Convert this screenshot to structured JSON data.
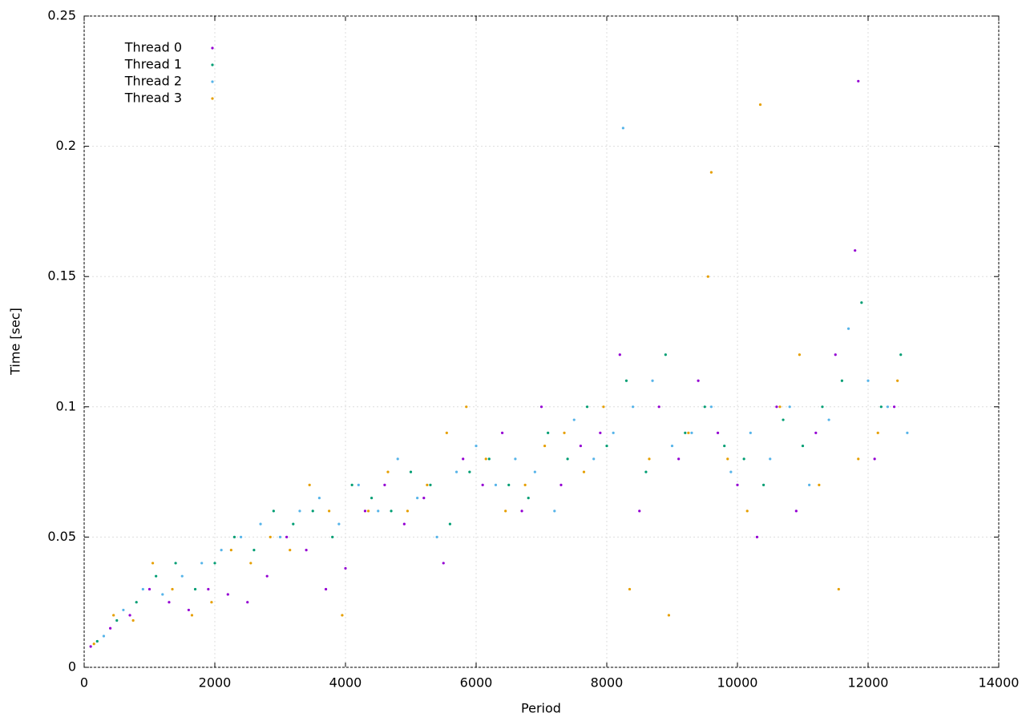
{
  "chart_data": {
    "type": "scatter",
    "xlabel": "Period",
    "ylabel": "Time [sec]",
    "xlim": [
      0,
      14000
    ],
    "ylim": [
      0,
      0.25
    ],
    "xticks": [
      0,
      2000,
      4000,
      6000,
      8000,
      10000,
      12000,
      14000
    ],
    "yticks": [
      0,
      0.05,
      0.1,
      0.15,
      0.2,
      0.25
    ],
    "grid": true,
    "legend": "upper left",
    "series": [
      {
        "name": "Thread 0",
        "color": "#9400d3",
        "x": [
          100,
          400,
          700,
          1000,
          1300,
          1600,
          1900,
          2200,
          2500,
          2800,
          3100,
          3400,
          3700,
          4000,
          4300,
          4600,
          4900,
          5200,
          5500,
          5800,
          6100,
          6400,
          6700,
          7000,
          7300,
          7600,
          7900,
          8200,
          8500,
          8800,
          9100,
          9400,
          9700,
          10000,
          10300,
          10600,
          10900,
          11200,
          11500,
          11800,
          11850,
          12100,
          12400
        ],
        "values": [
          0.008,
          0.015,
          0.02,
          0.03,
          0.025,
          0.022,
          0.03,
          0.028,
          0.025,
          0.035,
          0.05,
          0.045,
          0.03,
          0.038,
          0.06,
          0.07,
          0.055,
          0.065,
          0.04,
          0.08,
          0.07,
          0.09,
          0.06,
          0.1,
          0.07,
          0.085,
          0.09,
          0.12,
          0.06,
          0.1,
          0.08,
          0.11,
          0.09,
          0.07,
          0.05,
          0.1,
          0.06,
          0.09,
          0.12,
          0.16,
          0.225,
          0.08,
          0.1
        ]
      },
      {
        "name": "Thread 1",
        "color": "#009e73",
        "x": [
          200,
          500,
          800,
          1100,
          1400,
          1700,
          2000,
          2300,
          2600,
          2900,
          3200,
          3500,
          3800,
          4100,
          4400,
          4700,
          5000,
          5300,
          5600,
          5900,
          6200,
          6500,
          6800,
          7100,
          7400,
          7700,
          8000,
          8300,
          8600,
          8900,
          9200,
          9500,
          9800,
          10100,
          10400,
          10700,
          11000,
          11300,
          11600,
          11900,
          12200,
          12500
        ],
        "values": [
          0.01,
          0.018,
          0.025,
          0.035,
          0.04,
          0.03,
          0.04,
          0.05,
          0.045,
          0.06,
          0.055,
          0.06,
          0.05,
          0.07,
          0.065,
          0.06,
          0.075,
          0.07,
          0.055,
          0.075,
          0.08,
          0.07,
          0.065,
          0.09,
          0.08,
          0.1,
          0.085,
          0.11,
          0.075,
          0.12,
          0.09,
          0.1,
          0.085,
          0.08,
          0.07,
          0.095,
          0.085,
          0.1,
          0.11,
          0.14,
          0.1,
          0.12
        ]
      },
      {
        "name": "Thread 2",
        "color": "#56b4e9",
        "x": [
          300,
          600,
          900,
          1200,
          1500,
          1800,
          2100,
          2400,
          2700,
          3000,
          3300,
          3600,
          3900,
          4200,
          4500,
          4800,
          5100,
          5400,
          5700,
          6000,
          6300,
          6600,
          6900,
          7200,
          7500,
          7800,
          8100,
          8250,
          8400,
          8700,
          9000,
          9300,
          9600,
          9900,
          10200,
          10500,
          10800,
          11100,
          11400,
          11700,
          12000,
          12300,
          12600
        ],
        "values": [
          0.012,
          0.022,
          0.03,
          0.028,
          0.035,
          0.04,
          0.045,
          0.05,
          0.055,
          0.05,
          0.06,
          0.065,
          0.055,
          0.07,
          0.06,
          0.08,
          0.065,
          0.05,
          0.075,
          0.085,
          0.07,
          0.08,
          0.075,
          0.06,
          0.095,
          0.08,
          0.09,
          0.207,
          0.1,
          0.11,
          0.085,
          0.09,
          0.1,
          0.075,
          0.09,
          0.08,
          0.1,
          0.07,
          0.095,
          0.13,
          0.11,
          0.1,
          0.09
        ]
      },
      {
        "name": "Thread 3",
        "color": "#e69f00",
        "x": [
          150,
          450,
          750,
          1050,
          1350,
          1650,
          1950,
          2250,
          2550,
          2850,
          3150,
          3450,
          3750,
          3950,
          4350,
          4650,
          4950,
          5250,
          5550,
          5850,
          6150,
          6450,
          6750,
          7050,
          7350,
          7650,
          7950,
          8350,
          8650,
          8950,
          9250,
          9550,
          9600,
          9850,
          10150,
          10350,
          10650,
          10950,
          11250,
          11550,
          11850,
          12150,
          12450
        ],
        "values": [
          0.009,
          0.02,
          0.018,
          0.04,
          0.03,
          0.02,
          0.025,
          0.045,
          0.04,
          0.05,
          0.045,
          0.07,
          0.06,
          0.02,
          0.06,
          0.075,
          0.06,
          0.07,
          0.09,
          0.1,
          0.08,
          0.06,
          0.07,
          0.085,
          0.09,
          0.075,
          0.1,
          0.03,
          0.08,
          0.02,
          0.09,
          0.15,
          0.19,
          0.08,
          0.06,
          0.216,
          0.1,
          0.12,
          0.07,
          0.03,
          0.08,
          0.09,
          0.11
        ]
      }
    ]
  }
}
